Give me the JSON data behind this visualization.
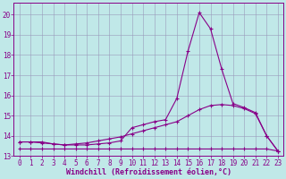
{
  "xlabel": "Windchill (Refroidissement éolien,°C)",
  "background_color": "#c0e8e8",
  "grid_color": "#9999bb",
  "line_color": "#880088",
  "xlim": [
    -0.5,
    23.5
  ],
  "ylim": [
    13.0,
    20.6
  ],
  "yticks": [
    13,
    14,
    15,
    16,
    17,
    18,
    19,
    20
  ],
  "xticks": [
    0,
    1,
    2,
    3,
    4,
    5,
    6,
    7,
    8,
    9,
    10,
    11,
    12,
    13,
    14,
    15,
    16,
    17,
    18,
    19,
    20,
    21,
    22,
    23
  ],
  "line1_x": [
    0,
    1,
    2,
    3,
    4,
    5,
    6,
    7,
    8,
    9,
    10,
    11,
    12,
    13,
    14,
    15,
    16,
    17,
    18,
    19,
    20,
    21,
    22,
    23
  ],
  "line1_y": [
    13.7,
    13.7,
    13.7,
    13.6,
    13.55,
    13.55,
    13.55,
    13.6,
    13.65,
    13.75,
    14.4,
    14.55,
    14.7,
    14.8,
    15.85,
    18.2,
    20.1,
    19.3,
    17.3,
    15.6,
    15.4,
    15.15,
    14.0,
    13.25
  ],
  "line2_x": [
    0,
    1,
    2,
    3,
    4,
    5,
    6,
    7,
    8,
    9,
    10,
    11,
    12,
    13,
    14,
    15,
    16,
    17,
    18,
    19,
    20,
    21,
    22,
    23
  ],
  "line2_y": [
    13.7,
    13.7,
    13.65,
    13.6,
    13.55,
    13.6,
    13.65,
    13.75,
    13.85,
    13.95,
    14.1,
    14.25,
    14.4,
    14.55,
    14.7,
    15.0,
    15.3,
    15.5,
    15.55,
    15.5,
    15.35,
    15.1,
    14.0,
    13.25
  ],
  "line3_x": [
    0,
    1,
    2,
    3,
    4,
    5,
    6,
    7,
    8,
    9,
    10,
    11,
    12,
    13,
    14,
    15,
    16,
    17,
    18,
    19,
    20,
    21,
    22,
    23
  ],
  "line3_y": [
    13.35,
    13.35,
    13.35,
    13.35,
    13.35,
    13.35,
    13.35,
    13.35,
    13.35,
    13.35,
    13.35,
    13.35,
    13.35,
    13.35,
    13.35,
    13.35,
    13.35,
    13.35,
    13.35,
    13.35,
    13.35,
    13.35,
    13.35,
    13.25
  ],
  "tick_fontsize": 5.5,
  "xlabel_fontsize": 6.0
}
